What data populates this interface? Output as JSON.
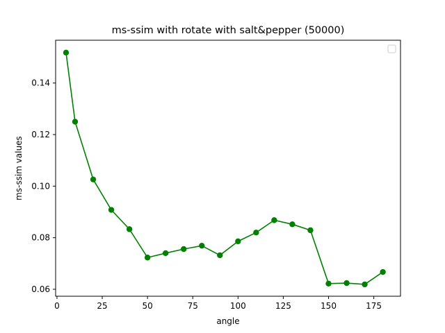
{
  "chart_data": {
    "type": "line",
    "title": "ms-ssim with rotate with salt&pepper (50000)",
    "xlabel": "angle",
    "ylabel": "ms-ssim values",
    "xlim": [
      -0.75,
      189.75
    ],
    "ylim": [
      0.0573,
      0.1566
    ],
    "xticks": [
      0,
      25,
      50,
      75,
      100,
      125,
      150,
      175
    ],
    "yticks": [
      0.06,
      0.08,
      0.1,
      0.12,
      0.14
    ],
    "ytick_labels": [
      "0.06",
      "0.08",
      "0.10",
      "0.12",
      "0.14"
    ],
    "grid": false,
    "legend": {
      "placement": "top-right",
      "entries": []
    },
    "series": [
      {
        "color": "#008000",
        "marker": "circle",
        "x": [
          5,
          10,
          20,
          30,
          40,
          50,
          60,
          70,
          80,
          90,
          100,
          110,
          120,
          130,
          140,
          150,
          160,
          170,
          180
        ],
        "y": [
          0.1518,
          0.125,
          0.1026,
          0.0908,
          0.0833,
          0.0723,
          0.074,
          0.0756,
          0.0769,
          0.0732,
          0.0786,
          0.082,
          0.0868,
          0.0852,
          0.0829,
          0.0622,
          0.0624,
          0.0619,
          0.0667
        ]
      }
    ]
  }
}
